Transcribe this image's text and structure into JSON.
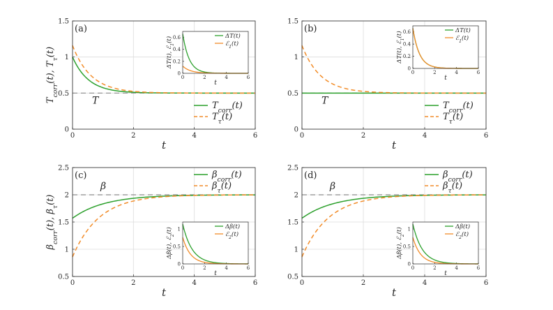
{
  "chart_data": [
    {
      "panel": "(a)",
      "type": "line",
      "xlabel": "t",
      "ylabel": "T_corr(t), T_τ(t)",
      "xlim": [
        0,
        6
      ],
      "ylim": [
        0,
        1.5
      ],
      "xticks": [
        "0",
        "2",
        "4",
        "6"
      ],
      "yticks": [
        "0",
        "0.5",
        "1",
        "1.5"
      ],
      "grid": true,
      "reference": {
        "label": "T",
        "value": 0.5
      },
      "legend_position": "bottom-right",
      "series": [
        {
          "name": "T_corr(t)",
          "color": "#2ca02c",
          "style": "solid",
          "start": 1.0,
          "end": 0.5,
          "rate": 1.9
        },
        {
          "name": "T_τ(t)",
          "color": "#f28c28",
          "style": "dashed",
          "start": 1.16,
          "end": 0.5,
          "rate": 1.65
        }
      ],
      "inset": {
        "xlabel": "t",
        "ylabel": "ΔT(t), E_1(t)",
        "xlim": [
          0,
          6
        ],
        "ylim": [
          0,
          0.7
        ],
        "xticks": [
          "0",
          "2",
          "4",
          "6"
        ],
        "yticks": [
          "0",
          "0.2",
          "0.4",
          "0.6"
        ],
        "legend_position": "top-right",
        "series": [
          {
            "name": "ΔT(t)",
            "color": "#2ca02c",
            "style": "solid",
            "start": 0.66,
            "end": 0,
            "rate": 1.7
          },
          {
            "name": "E_1(t)",
            "color": "#f28c28",
            "style": "solid",
            "start": 0.12,
            "end": 0,
            "rate": 1.4
          }
        ]
      }
    },
    {
      "panel": "(b)",
      "type": "line",
      "xlabel": "t",
      "ylabel": "",
      "xlim": [
        0,
        6
      ],
      "ylim": [
        0,
        1.5
      ],
      "xticks": [
        "0",
        "2",
        "4",
        "6"
      ],
      "yticks": [
        "0",
        "0.5",
        "1",
        "1.5"
      ],
      "grid": true,
      "reference": {
        "label": "T",
        "value": 0.5
      },
      "legend_position": "bottom-right",
      "series": [
        {
          "name": "T_corr(t)",
          "color": "#2ca02c",
          "style": "solid",
          "start": 0.5,
          "end": 0.5,
          "rate": 1.0
        },
        {
          "name": "T_τ(t)",
          "color": "#f28c28",
          "style": "dashed",
          "start": 1.16,
          "end": 0.5,
          "rate": 1.65
        }
      ],
      "inset": {
        "xlabel": "t",
        "ylabel": "ΔT(t), E_1(t)",
        "xlim": [
          0,
          6
        ],
        "ylim": [
          0,
          0.7
        ],
        "xticks": [
          "0",
          "2",
          "4",
          "6"
        ],
        "yticks": [
          "0",
          "0.2",
          "0.4",
          "0.6"
        ],
        "legend_position": "top-right",
        "series": [
          {
            "name": "ΔT(t)",
            "color": "#2ca02c",
            "style": "solid",
            "start": 0.66,
            "end": 0,
            "rate": 1.65
          },
          {
            "name": "E_1(t)",
            "color": "#f28c28",
            "style": "solid",
            "start": 0.66,
            "end": 0,
            "rate": 1.65
          }
        ]
      }
    },
    {
      "panel": "(c)",
      "type": "line",
      "xlabel": "t",
      "ylabel": "β_corr(t), β_τ(t)",
      "xlim": [
        0,
        6
      ],
      "ylim": [
        0.5,
        2.5
      ],
      "xticks": [
        "0",
        "2",
        "4",
        "6"
      ],
      "yticks": [
        "0.5",
        "1",
        "1.5",
        "2",
        "2.5"
      ],
      "grid": true,
      "reference": {
        "label": "β",
        "value": 2
      },
      "legend_position": "top-right",
      "series": [
        {
          "name": "β_corr(t)",
          "color": "#2ca02c",
          "style": "solid",
          "start": 1.57,
          "end": 2.0,
          "rate": 0.95
        },
        {
          "name": "β_τ(t)",
          "color": "#f28c28",
          "style": "dashed",
          "start": 0.86,
          "end": 2.0,
          "rate": 1.15
        }
      ],
      "inset": {
        "xlabel": "t",
        "ylabel": "Δβ(t), E_2(t)",
        "xlim": [
          0,
          6
        ],
        "ylim": [
          0,
          1.2
        ],
        "xticks": [
          "0",
          "2",
          "4",
          "6"
        ],
        "yticks": [
          "0",
          "0.5",
          "1"
        ],
        "legend_position": "top-right",
        "series": [
          {
            "name": "Δβ(t)",
            "color": "#2ca02c",
            "style": "solid",
            "start": 1.14,
            "end": 0,
            "rate": 1.15
          },
          {
            "name": "E_2(t)",
            "color": "#f28c28",
            "style": "solid",
            "start": 0.76,
            "end": 0,
            "rate": 1.4
          }
        ]
      }
    },
    {
      "panel": "(d)",
      "type": "line",
      "xlabel": "t",
      "ylabel": "",
      "xlim": [
        0,
        6
      ],
      "ylim": [
        0.5,
        2.5
      ],
      "xticks": [
        "0",
        "2",
        "4",
        "6"
      ],
      "yticks": [
        "0.5",
        "1",
        "1.5",
        "2",
        "2.5"
      ],
      "grid": true,
      "reference": {
        "label": "β",
        "value": 2
      },
      "legend_position": "top-right",
      "series": [
        {
          "name": "β_corr(t)",
          "color": "#2ca02c",
          "style": "solid",
          "start": 1.57,
          "end": 2.0,
          "rate": 0.95
        },
        {
          "name": "β_τ(t)",
          "color": "#f28c28",
          "style": "dashed",
          "start": 0.86,
          "end": 2.0,
          "rate": 1.15
        }
      ],
      "inset": {
        "xlabel": "t",
        "ylabel": "Δβ(t), E_2(t)",
        "xlim": [
          0,
          6
        ],
        "ylim": [
          0,
          1.2
        ],
        "xticks": [
          "0",
          "2",
          "4",
          "6"
        ],
        "yticks": [
          "0",
          "0.5",
          "1"
        ],
        "legend_position": "top-right",
        "series": [
          {
            "name": "Δβ(t)",
            "color": "#2ca02c",
            "style": "solid",
            "start": 1.14,
            "end": 0,
            "rate": 1.15
          },
          {
            "name": "E_2(t)",
            "color": "#f28c28",
            "style": "solid",
            "start": 0.76,
            "end": 0,
            "rate": 1.4
          }
        ]
      }
    }
  ]
}
